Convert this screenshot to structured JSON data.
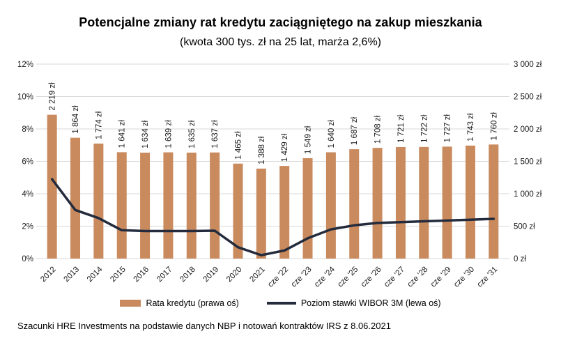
{
  "chart_data": {
    "type": "bar",
    "title": "Potencjalne zmiany rat kredytu zaciągniętego na zakup mieszkania",
    "subtitle": "(kwota 300 tys. zł na 25 lat, marża 2,6%)",
    "categories": [
      "2012",
      "2013",
      "2014",
      "2015",
      "2016",
      "2017",
      "2018",
      "2019",
      "2020",
      "2021",
      "cze '22",
      "cze '23",
      "cze '24",
      "cze '25",
      "cze '26",
      "cze '27",
      "cze '28",
      "cze '29",
      "cze '30",
      "cze '31"
    ],
    "series": [
      {
        "name": "Rata kredytu (prawa oś)",
        "type": "bar",
        "axis": "right",
        "unit": "zł",
        "values": [
          2219,
          1864,
          1774,
          1641,
          1634,
          1639,
          1635,
          1637,
          1465,
          1388,
          1429,
          1549,
          1640,
          1687,
          1708,
          1721,
          1722,
          1727,
          1743,
          1760
        ],
        "labels": [
          "2 219 zł",
          "1 864 zł",
          "1 774 zł",
          "1 641 zł",
          "1 634 zł",
          "1 639 zł",
          "1 635 zł",
          "1 637 zł",
          "1 465 zł",
          "1 388 zł",
          "1 429 zł",
          "1 549 zł",
          "1 640 zł",
          "1 687 zł",
          "1 708 zł",
          "1 721 zł",
          "1 722 zł",
          "1 727 zł",
          "1 743 zł",
          "1 760 zł"
        ]
      },
      {
        "name": "Poziom stawki WIBOR 3M (lewa oś)",
        "type": "line",
        "axis": "left",
        "unit": "%",
        "values": [
          4.9,
          3.0,
          2.5,
          1.75,
          1.7,
          1.7,
          1.7,
          1.72,
          0.7,
          0.21,
          0.5,
          1.25,
          1.8,
          2.05,
          2.2,
          2.25,
          2.3,
          2.35,
          2.4,
          2.45
        ]
      }
    ],
    "left_axis": {
      "min": 0,
      "max": 12,
      "step": 2,
      "tick_labels": [
        "0%",
        "2%",
        "4%",
        "6%",
        "8%",
        "10%",
        "12%"
      ]
    },
    "right_axis": {
      "min": 0,
      "max": 3000,
      "step": 500,
      "tick_labels": [
        "0 zł",
        "500 zł",
        "1 000 zł",
        "1 500 zł",
        "2 000 zł",
        "2 500 zł",
        "3 000 zł"
      ]
    },
    "grid": true,
    "legend_position": "bottom"
  },
  "legend": {
    "bars": "Rata kredytu (prawa oś)",
    "line": "Poziom stawki WIBOR 3M (lewa oś)"
  },
  "footer": {
    "source": "Szacunki HRE Investments na podstawie danych NBP i notowań kontraktów IRS z 8.06.2021"
  },
  "colors": {
    "bar": "#C98A5E",
    "line": "#232B3C",
    "grid": "#D9D9D9",
    "text": "#1A1A1A"
  }
}
